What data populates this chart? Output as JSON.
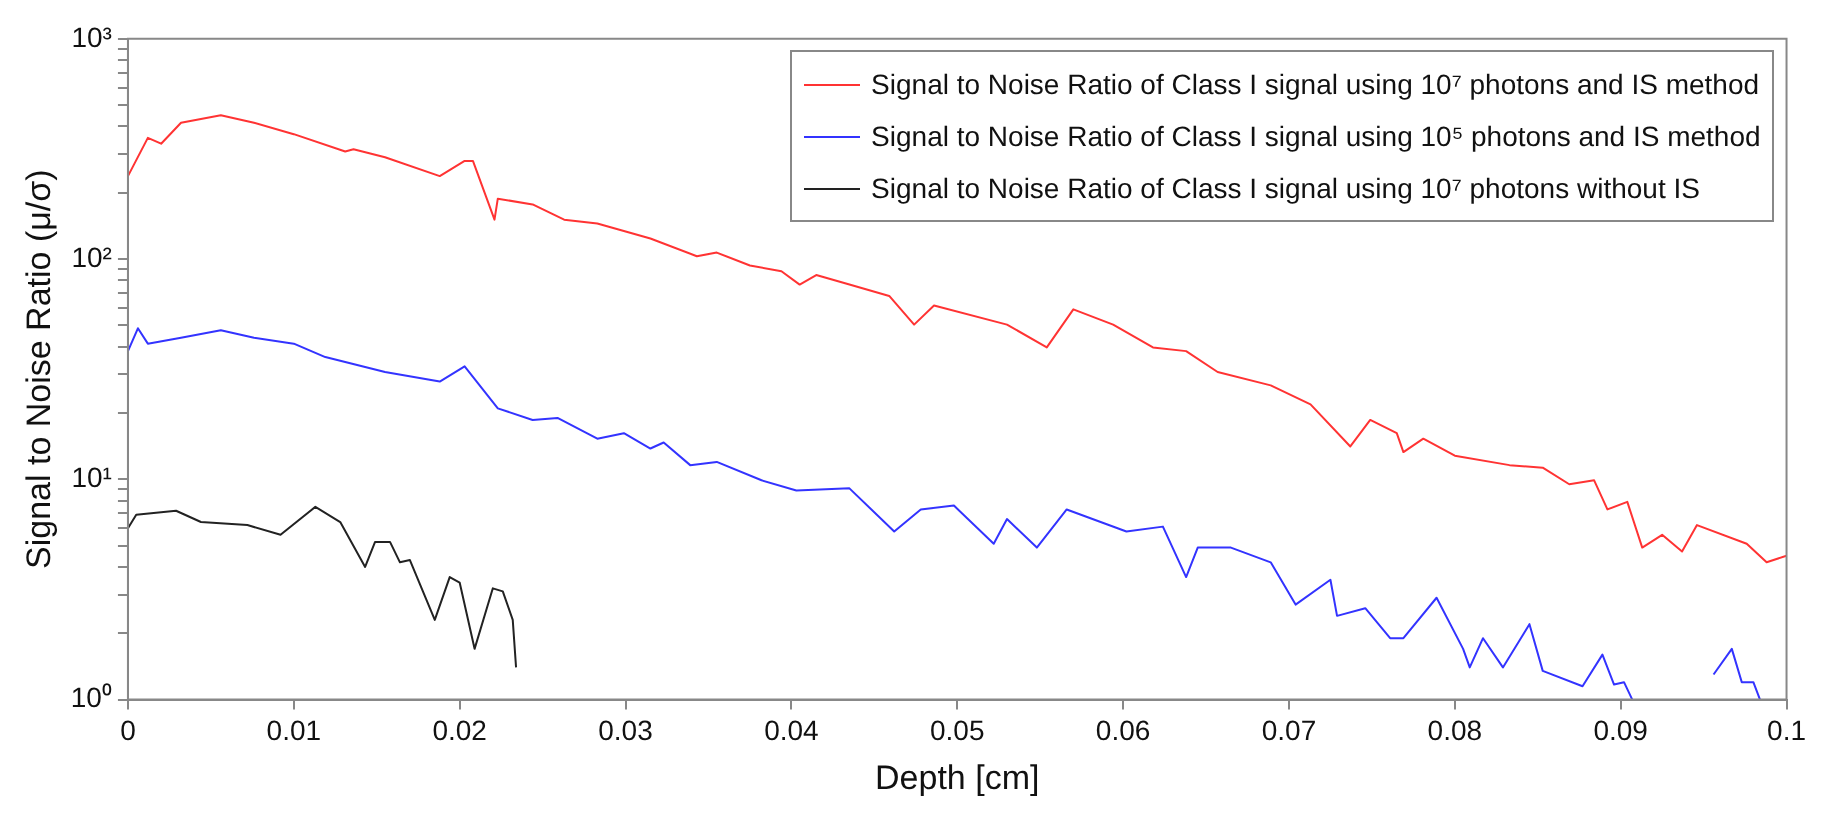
{
  "chart_data": {
    "type": "line",
    "xlabel": "Depth [cm]",
    "ylabel": "Signal to Noise Ratio (μ/σ)",
    "log": "y",
    "grid": false,
    "legend": "top right",
    "marker": "none",
    "line_style": "solid",
    "xlim": [
      0,
      0.1
    ],
    "xticks": [
      0,
      0.01,
      0.02,
      0.03,
      0.04,
      0.05,
      0.06,
      0.07,
      0.08,
      0.09,
      0.1
    ],
    "ylim": [
      1,
      1000
    ],
    "yticks": [
      {
        "value": 1,
        "label": "10⁰"
      },
      {
        "value": 2,
        "label": null
      },
      {
        "value": 3,
        "label": null
      },
      {
        "value": 4,
        "label": null
      },
      {
        "value": 5,
        "label": null
      },
      {
        "value": 6,
        "label": null
      },
      {
        "value": 7,
        "label": null
      },
      {
        "value": 8,
        "label": null
      },
      {
        "value": 9,
        "label": null
      },
      {
        "value": 10,
        "label": "10¹"
      },
      {
        "value": 20,
        "label": null
      },
      {
        "value": 30,
        "label": null
      },
      {
        "value": 40,
        "label": null
      },
      {
        "value": 50,
        "label": null
      },
      {
        "value": 60,
        "label": null
      },
      {
        "value": 70,
        "label": null
      },
      {
        "value": 80,
        "label": null
      },
      {
        "value": 90,
        "label": null
      },
      {
        "value": 100,
        "label": "10²"
      },
      {
        "value": 200,
        "label": null
      },
      {
        "value": 300,
        "label": null
      },
      {
        "value": 400,
        "label": null
      },
      {
        "value": 500,
        "label": null
      },
      {
        "value": 600,
        "label": null
      },
      {
        "value": 700,
        "label": null
      },
      {
        "value": 800,
        "label": null
      },
      {
        "value": 900,
        "label": null
      },
      {
        "value": 1000,
        "label": "10³"
      }
    ],
    "series": [
      {
        "name": "Signal to Noise Ratio of Class I signal using 10⁷ photons and IS method",
        "color": "#ff3333",
        "x": [
          0,
          0.0012,
          0.002,
          0.0032,
          0.0056,
          0.0076,
          0.01,
          0.0131,
          0.0136,
          0.0155,
          0.0188,
          0.0203,
          0.0208,
          0.0221,
          0.0223,
          0.0244,
          0.0263,
          0.0283,
          0.0315,
          0.0343,
          0.0355,
          0.0375,
          0.0394,
          0.0405,
          0.0415,
          0.0435,
          0.0459,
          0.0474,
          0.0486,
          0.053,
          0.0554,
          0.057,
          0.0594,
          0.0618,
          0.0638,
          0.0657,
          0.0689,
          0.0713,
          0.0737,
          0.0749,
          0.0765,
          0.0769,
          0.0781,
          0.08,
          0.0833,
          0.0853,
          0.0869,
          0.0884,
          0.0892,
          0.0904,
          0.0913,
          0.0925,
          0.0937,
          0.0946,
          0.0976,
          0.0988,
          0.1
        ],
        "values": [
          238,
          355,
          334,
          416,
          450,
          416,
          369,
          308,
          315,
          290,
          238,
          279,
          279,
          151,
          188,
          177,
          151,
          145,
          124,
          103,
          107,
          93.5,
          88,
          76.6,
          84.6,
          76.6,
          68,
          50.4,
          61.5,
          50.4,
          39.7,
          59.1,
          50.4,
          39.7,
          38.2,
          30.7,
          26.7,
          21.9,
          14.1,
          18.6,
          16.2,
          13.3,
          15.3,
          12.8,
          11.6,
          11.3,
          9.5,
          9.9,
          7.3,
          7.9,
          4.9,
          5.6,
          4.7,
          6.2,
          5.1,
          4.2,
          4.5
        ]
      },
      {
        "name": "Signal to Noise Ratio of Class I signal using 10⁵ photons and IS method",
        "color": "#3333ff",
        "x": [
          0,
          0.0006,
          0.0012,
          0.0032,
          0.0056,
          0.0076,
          0.01,
          0.0119,
          0.0155,
          0.0188,
          0.0203,
          0.0223,
          0.0244,
          0.0259,
          0.0283,
          0.0299,
          0.0315,
          0.0323,
          0.0339,
          0.0355,
          0.0382,
          0.0403,
          0.0435,
          0.0462,
          0.0478,
          0.0498,
          0.0522,
          0.053,
          0.0548,
          0.0566,
          0.0602,
          0.0624,
          0.0638,
          0.0645,
          0.0665,
          0.0689,
          0.0704,
          0.0725,
          0.0729,
          0.0746,
          0.0761,
          0.0769,
          0.0789,
          0.0805,
          0.0809,
          0.0817,
          0.0829,
          0.0845,
          0.0853,
          0.0877,
          0.0889,
          0.0896,
          0.0902,
          0.0907,
          0.093,
          0.0956,
          0.0967,
          0.0973,
          0.098,
          0.0984
        ],
        "values": [
          38.2,
          48.5,
          41.3,
          43.9,
          47.5,
          43.9,
          41.3,
          35.9,
          30.7,
          27.8,
          32.6,
          21,
          18.6,
          19,
          15.3,
          16.2,
          13.8,
          14.7,
          11.6,
          12,
          9.9,
          8.9,
          9.1,
          5.8,
          7.3,
          7.6,
          5.1,
          6.6,
          4.9,
          7.3,
          5.8,
          6.1,
          3.6,
          4.9,
          4.9,
          4.2,
          2.7,
          3.5,
          2.4,
          2.6,
          1.9,
          1.9,
          2.9,
          1.7,
          1.4,
          1.9,
          1.4,
          2.2,
          1.35,
          1.15,
          1.6,
          1.17,
          1.2,
          1,
          null,
          1.3,
          1.7,
          1.2,
          1.2,
          1
        ]
      },
      {
        "name": "Signal to Noise Ratio of Class I signal using 10⁷ photons without IS",
        "color": "#222222",
        "x": [
          0,
          0.0005,
          0.0029,
          0.0044,
          0.0072,
          0.0092,
          0.0113,
          0.0128,
          0.0143,
          0.0149,
          0.0158,
          0.0164,
          0.017,
          0.0185,
          0.0194,
          0.02,
          0.0209,
          0.022,
          0.0226,
          0.0232,
          0.0234
        ],
        "values": [
          6,
          6.9,
          7.2,
          6.4,
          6.2,
          5.6,
          7.5,
          6.4,
          4,
          5.2,
          5.2,
          4.2,
          4.3,
          2.3,
          3.6,
          3.4,
          1.7,
          3.2,
          3.1,
          2.3,
          1.4
        ]
      }
    ]
  }
}
